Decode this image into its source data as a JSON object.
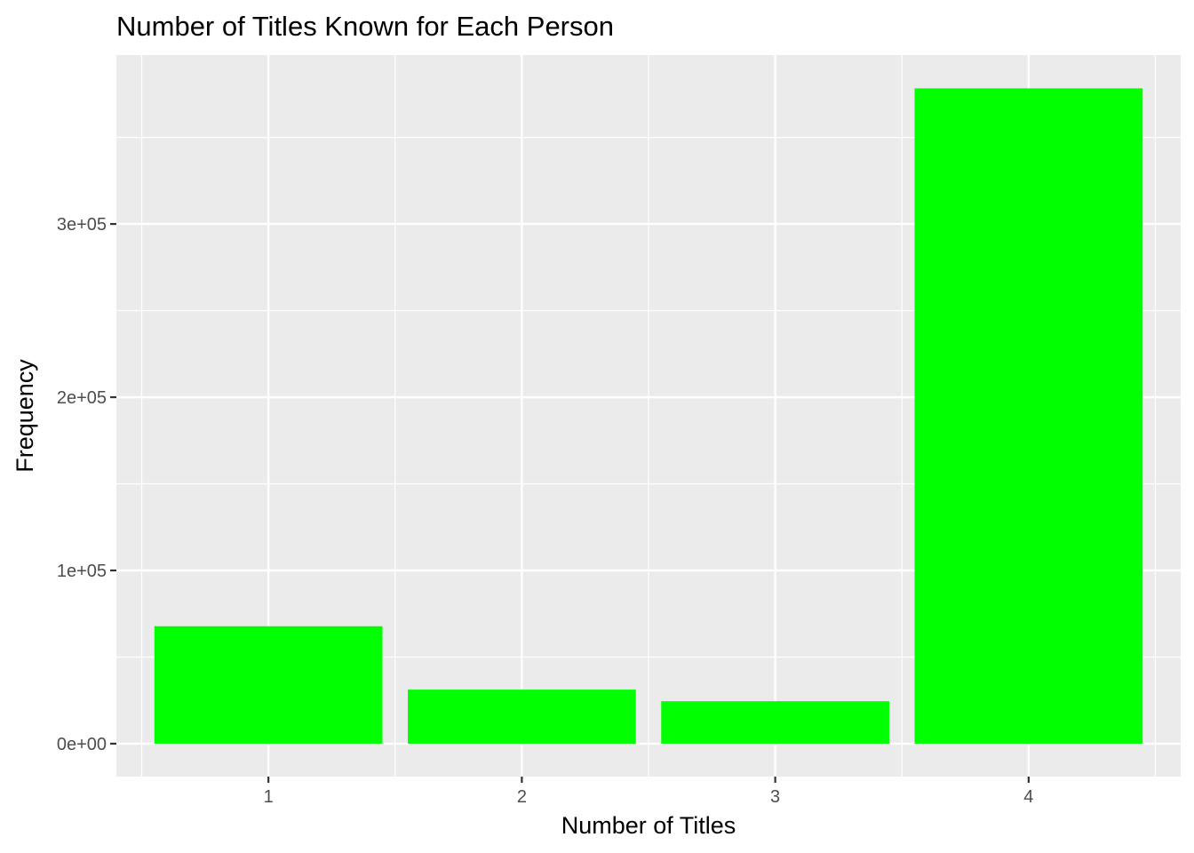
{
  "chart_data": {
    "type": "bar",
    "title": "Number of Titles Known for Each Person",
    "xlabel": "Number of Titles",
    "ylabel": "Frequency",
    "categories": [
      "1",
      "2",
      "3",
      "4"
    ],
    "values": [
      67800,
      31200,
      24500,
      378300
    ],
    "ylim": [
      -19000,
      397500
    ],
    "yticks": [
      0,
      100000,
      200000,
      300000
    ],
    "ytick_labels": [
      "0e+00",
      "1e+05",
      "2e+05",
      "3e+05"
    ],
    "grid": true,
    "legend": "none",
    "colors": {
      "bar": "#00ff00",
      "panel": "#ebebeb",
      "grid": "#ffffff",
      "tick_text": "#4d4d4d",
      "tick_mark": "#333333"
    }
  }
}
